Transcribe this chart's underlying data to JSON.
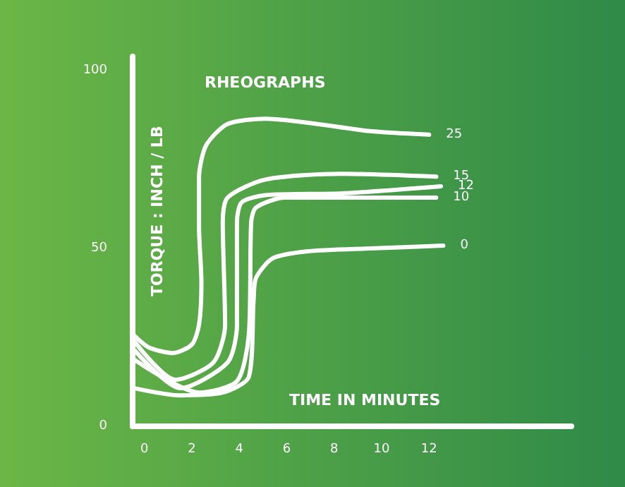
{
  "chart_data": {
    "type": "line",
    "title": "RHEOGRAPHS",
    "xlabel": "TIME IN MINUTES",
    "ylabel": "TORQUE : INCH / LB",
    "xlim": [
      -0.5,
      18
    ],
    "xticks": [
      0,
      2,
      4,
      6,
      8,
      10,
      12
    ],
    "ylim": [
      0,
      104
    ],
    "yticks": [
      0,
      50,
      100
    ],
    "grid": false,
    "legend": false,
    "marker": "none",
    "line_style": "solid",
    "series": [
      {
        "name": "25",
        "color": "#ffffff",
        "x": [
          -0.42,
          0.18,
          1.2,
          2.0,
          2.3,
          2.4,
          2.3,
          2.3,
          2.6,
          3.5,
          5.1,
          9.5,
          12
        ],
        "values": [
          25.4,
          22.2,
          20.6,
          23,
          28.6,
          40.5,
          56,
          70,
          79,
          85,
          86.5,
          83,
          82
        ]
      },
      {
        "name": "15",
        "color": "#ffffff",
        "x": [
          -0.42,
          1.3,
          2.9,
          3.4,
          3.3,
          3.5,
          5.1,
          8.3,
          12.3
        ],
        "values": [
          23.8,
          13.1,
          17.9,
          28.6,
          57.5,
          64.3,
          69.4,
          71,
          70.2
        ]
      },
      {
        "name": "12",
        "color": "#ffffff",
        "x": [
          -0.42,
          1.5,
          3.5,
          3.9,
          3.9,
          4.1,
          5.1,
          8.3,
          12.5
        ],
        "values": [
          21.4,
          10.7,
          17.9,
          28.6,
          57.5,
          63,
          65,
          65.5,
          67.5
        ]
      },
      {
        "name": "10",
        "color": "#ffffff",
        "x": [
          -0.42,
          2.3,
          3.9,
          4.4,
          4.5,
          4.7,
          5.9,
          8.3,
          12.3
        ],
        "values": [
          18.7,
          9.5,
          12.7,
          25.8,
          57.5,
          61.5,
          64.3,
          64.3,
          64.3
        ]
      },
      {
        "name": "0",
        "color": "#ffffff",
        "x": [
          -0.42,
          1.5,
          3.3,
          4.4,
          4.6,
          4.7,
          5.4,
          6.9,
          9.5,
          12.6
        ],
        "values": [
          10.7,
          8.7,
          9.5,
          13.9,
          35.3,
          41.7,
          47.2,
          49.2,
          50,
          50.8
        ]
      }
    ]
  }
}
